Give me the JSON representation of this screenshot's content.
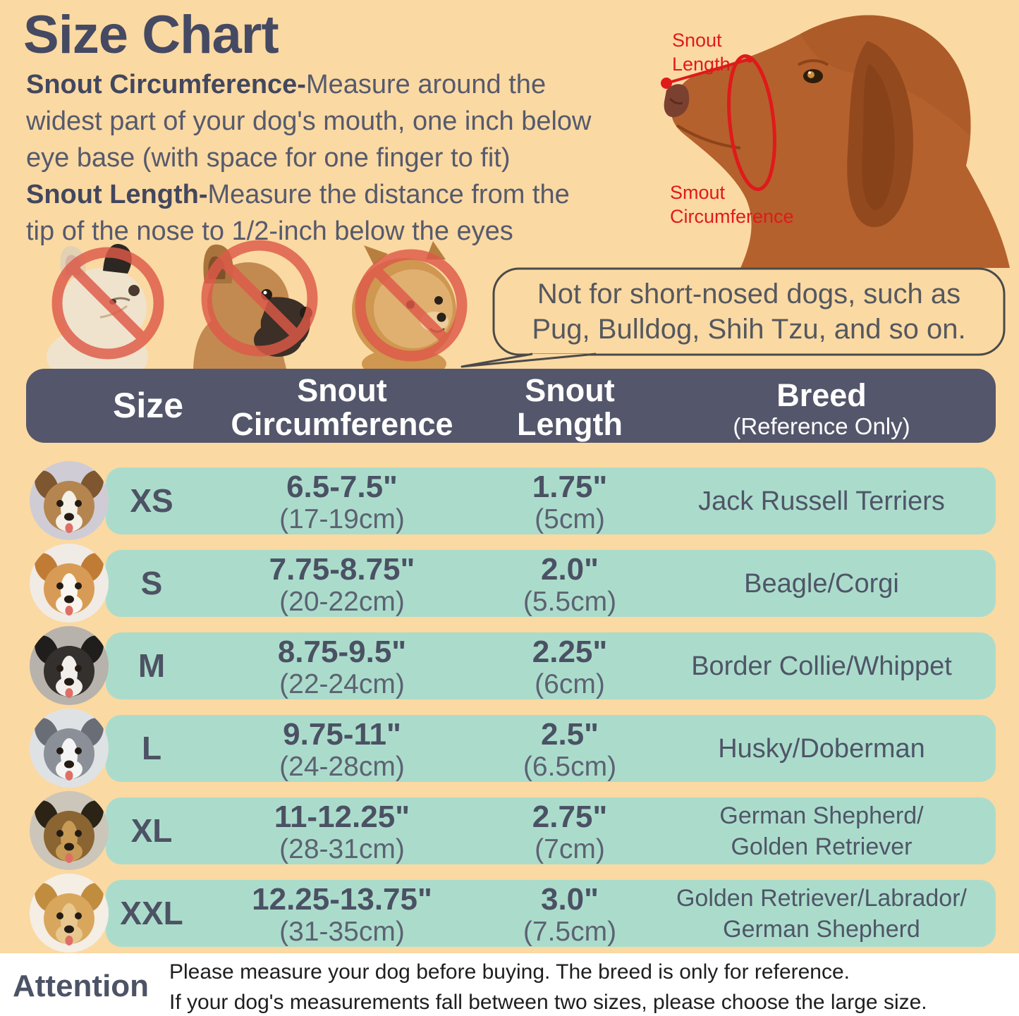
{
  "title": "Size Chart",
  "intro": {
    "line1_bold": "Snout Circumference-",
    "line1_rest": "Measure around the",
    "line2": "widest part of your dog's mouth, one inch below",
    "line3": "eye base (with space for one finger to fit)",
    "line4_bold": "Snout Length-",
    "line4_rest": "Measure the distance from the",
    "line5": "tip of the nose to 1/2-inch below the eyes"
  },
  "diagram": {
    "snout_length_label": "Snout Length",
    "snout_circumference_label": "Smout Circumference"
  },
  "warning_bubble": {
    "line1": "Not for short-nosed dogs, such as",
    "line2": "Pug, Bulldog, Shih Tzu, and so on."
  },
  "table": {
    "headers": {
      "size": "Size",
      "circumference": "Snout Circumference",
      "length": "Snout Length",
      "breed": "Breed",
      "breed_note": "(Reference Only)"
    },
    "rows": [
      {
        "size": "XS",
        "circ_in": "6.5-7.5\"",
        "circ_cm": "(17-19cm)",
        "len_in": "1.75\"",
        "len_cm": "(5cm)",
        "breed": "Jack Russell Terriers",
        "avatar": "jack-russell-terrier-avatar"
      },
      {
        "size": "S",
        "circ_in": "7.75-8.75\"",
        "circ_cm": "(20-22cm)",
        "len_in": "2.0\"",
        "len_cm": "(5.5cm)",
        "breed": "Beagle/Corgi",
        "avatar": "corgi-avatar"
      },
      {
        "size": "M",
        "circ_in": "8.75-9.5\"",
        "circ_cm": "(22-24cm)",
        "len_in": "2.25\"",
        "len_cm": "(6cm)",
        "breed": "Border Collie/Whippet",
        "avatar": "border-collie-avatar"
      },
      {
        "size": "L",
        "circ_in": "9.75-11\"",
        "circ_cm": "(24-28cm)",
        "len_in": "2.5\"",
        "len_cm": "(6.5cm)",
        "breed": "Husky/Doberman",
        "avatar": "husky-avatar"
      },
      {
        "size": "XL",
        "circ_in": "11-12.25\"",
        "circ_cm": "(28-31cm)",
        "len_in": "2.75\"",
        "len_cm": "(7cm)",
        "breed": "German Shepherd/\nGolden Retriever",
        "avatar": "german-shepherd-avatar"
      },
      {
        "size": "XXL",
        "circ_in": "12.25-13.75\"",
        "circ_cm": "(31-35cm)",
        "len_in": "3.0\"",
        "len_cm": "(7.5cm)",
        "breed": "Golden Retriever/Labrador/\nGerman Shepherd",
        "avatar": "golden-retriever-avatar"
      }
    ]
  },
  "footer": {
    "label": "Attention",
    "line1": "Please measure your dog before buying. The breed is only for reference.",
    "line2": "If your dog's measurements fall between two sizes, please choose the large size."
  },
  "colors": {
    "background": "#fbd9a2",
    "header_bar": "#54566b",
    "row_bg": "#abdccb",
    "heading_text": "#454a62",
    "red_accent": "#e01a1a",
    "prohibition_red": "#de5a49",
    "footer_bg": "#ffffff"
  }
}
